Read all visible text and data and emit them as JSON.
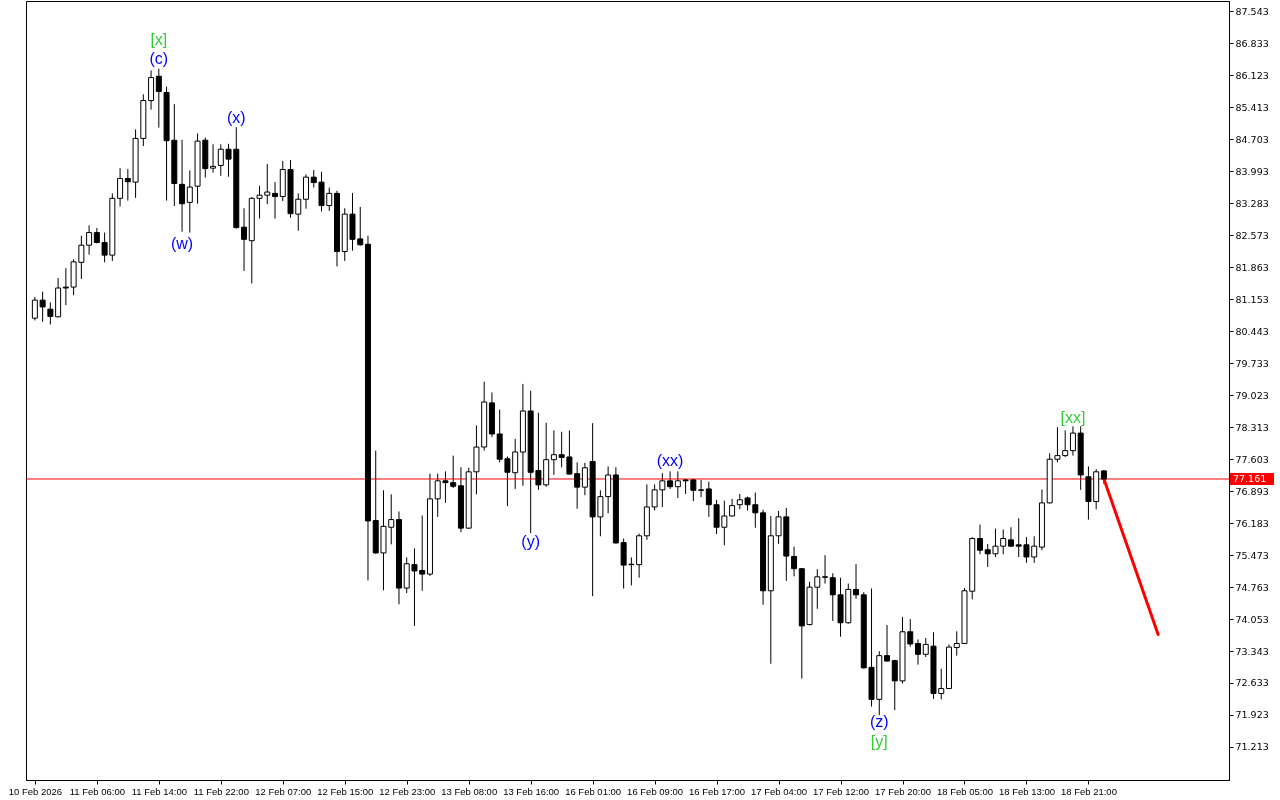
{
  "chart_data": {
    "type": "candlestick",
    "categories": [
      "10 Feb 2026",
      null,
      null,
      null,
      null,
      null,
      null,
      null,
      "11 Feb 06:00",
      null,
      null,
      null,
      null,
      null,
      null,
      null,
      "11 Feb 14:00",
      null,
      null,
      null,
      null,
      null,
      null,
      null,
      "11 Feb 22:00",
      null,
      null,
      null,
      null,
      null,
      null,
      null,
      "12 Feb 07:00",
      null,
      null,
      null,
      null,
      null,
      null,
      null,
      "12 Feb 15:00",
      null,
      null,
      null,
      null,
      null,
      null,
      null,
      "12 Feb 23:00",
      null,
      null,
      null,
      null,
      null,
      null,
      null,
      "13 Feb 08:00",
      null,
      null,
      null,
      null,
      null,
      null,
      null,
      "13 Feb 16:00",
      null,
      null,
      null,
      null,
      null,
      null,
      null,
      "16 Feb 01:00",
      null,
      null,
      null,
      null,
      null,
      null,
      null,
      "16 Feb 09:00",
      null,
      null,
      null,
      null,
      null,
      null,
      null,
      "16 Feb 17:00",
      null,
      null,
      null,
      null,
      null,
      null,
      null,
      "17 Feb 04:00",
      null,
      null,
      null,
      null,
      null,
      null,
      null,
      "17 Feb 12:00",
      null,
      null,
      null,
      null,
      null,
      null,
      null,
      "17 Feb 20:00",
      null,
      null,
      null,
      null,
      null,
      null,
      null,
      "18 Feb 05:00",
      null,
      null,
      null,
      null,
      null,
      null,
      null,
      "18 Feb 13:00",
      null,
      null,
      null,
      null,
      null,
      null,
      null,
      "18 Feb 21:00",
      null,
      null,
      null,
      null,
      null,
      null,
      null,
      null,
      null,
      null,
      null,
      null,
      null,
      null,
      null,
      null,
      null
    ],
    "ohlc": [
      [
        80.73,
        81.2,
        80.68,
        81.13
      ],
      [
        81.13,
        81.32,
        80.65,
        80.98
      ],
      [
        80.93,
        81.08,
        80.59,
        80.77
      ],
      [
        80.76,
        81.62,
        80.75,
        81.4
      ],
      [
        81.42,
        81.84,
        81.02,
        81.4
      ],
      [
        81.42,
        82.04,
        81.24,
        81.98
      ],
      [
        81.97,
        82.56,
        81.6,
        82.35
      ],
      [
        82.35,
        82.79,
        82.14,
        82.63
      ],
      [
        82.63,
        82.73,
        82.39,
        82.41
      ],
      [
        82.41,
        82.63,
        81.97,
        82.13
      ],
      [
        82.13,
        83.5,
        82.0,
        83.39
      ],
      [
        83.39,
        84.06,
        83.21,
        83.83
      ],
      [
        83.83,
        84.04,
        83.34,
        83.76
      ],
      [
        83.75,
        84.92,
        83.4,
        84.72
      ],
      [
        84.72,
        85.7,
        84.55,
        85.56
      ],
      [
        85.56,
        86.23,
        85.36,
        86.07
      ],
      [
        86.1,
        86.27,
        84.96,
        85.76
      ],
      [
        85.74,
        85.87,
        83.34,
        84.67
      ],
      [
        84.68,
        85.48,
        83.22,
        83.72
      ],
      [
        83.7,
        84.69,
        82.65,
        83.27
      ],
      [
        83.3,
        84.01,
        82.63,
        83.64
      ],
      [
        83.66,
        84.83,
        83.27,
        84.66
      ],
      [
        84.68,
        84.74,
        83.85,
        84.05
      ],
      [
        84.06,
        84.59,
        83.96,
        84.1
      ],
      [
        84.12,
        84.59,
        83.89,
        84.48
      ],
      [
        84.48,
        84.6,
        83.87,
        84.26
      ],
      [
        84.48,
        84.97,
        82.72,
        82.74
      ],
      [
        82.75,
        83.17,
        81.78,
        82.48
      ],
      [
        82.45,
        83.42,
        81.5,
        83.39
      ],
      [
        83.39,
        83.67,
        82.94,
        83.46
      ],
      [
        83.46,
        84.15,
        83.26,
        83.53
      ],
      [
        83.5,
        83.75,
        82.94,
        83.43
      ],
      [
        83.43,
        84.22,
        83.33,
        84.03
      ],
      [
        84.03,
        84.24,
        82.96,
        83.05
      ],
      [
        83.04,
        83.5,
        82.67,
        83.37
      ],
      [
        83.37,
        83.92,
        83.16,
        83.86
      ],
      [
        83.86,
        84.02,
        83.63,
        83.74
      ],
      [
        83.75,
        83.98,
        83.1,
        83.23
      ],
      [
        83.23,
        83.63,
        83.11,
        83.5
      ],
      [
        83.5,
        83.56,
        81.88,
        82.21
      ],
      [
        82.21,
        83.17,
        82.0,
        83.04
      ],
      [
        83.04,
        83.51,
        82.23,
        82.48
      ],
      [
        82.49,
        83.2,
        82.34,
        82.36
      ],
      [
        82.37,
        82.56,
        74.91,
        76.23
      ],
      [
        76.24,
        77.79,
        75.5,
        75.52
      ],
      [
        75.52,
        76.91,
        74.69,
        76.11
      ],
      [
        76.09,
        76.82,
        75.71,
        76.26
      ],
      [
        76.26,
        76.44,
        74.38,
        74.74
      ],
      [
        74.74,
        75.42,
        74.63,
        75.28
      ],
      [
        75.26,
        75.62,
        73.9,
        75.12
      ],
      [
        75.13,
        76.35,
        74.68,
        75.05
      ],
      [
        75.05,
        77.28,
        75.01,
        76.72
      ],
      [
        76.72,
        77.28,
        76.32,
        77.12
      ],
      [
        77.12,
        77.33,
        76.63,
        77.08
      ],
      [
        77.08,
        77.68,
        76.96,
        77.0
      ],
      [
        77.01,
        77.42,
        75.98,
        76.07
      ],
      [
        76.07,
        77.41,
        76.06,
        77.32
      ],
      [
        77.32,
        78.35,
        76.82,
        77.87
      ],
      [
        77.87,
        79.32,
        77.79,
        78.87
      ],
      [
        78.85,
        79.08,
        78.09,
        78.16
      ],
      [
        78.16,
        78.7,
        77.53,
        77.6
      ],
      [
        77.61,
        77.66,
        76.56,
        77.31
      ],
      [
        77.3,
        78.05,
        76.94,
        77.76
      ],
      [
        77.76,
        79.27,
        77.01,
        78.67
      ],
      [
        78.67,
        79.12,
        75.96,
        77.31
      ],
      [
        77.35,
        78.63,
        76.92,
        77.03
      ],
      [
        77.03,
        78.41,
        76.99,
        77.59
      ],
      [
        77.59,
        78.24,
        77.25,
        77.7
      ],
      [
        77.7,
        78.21,
        77.42,
        77.64
      ],
      [
        77.65,
        78.24,
        77.26,
        77.27
      ],
      [
        77.28,
        77.53,
        76.5,
        76.98
      ],
      [
        76.98,
        77.52,
        76.8,
        77.41
      ],
      [
        77.55,
        78.4,
        74.56,
        76.32
      ],
      [
        76.32,
        76.91,
        75.89,
        76.77
      ],
      [
        76.77,
        77.44,
        76.4,
        77.25
      ],
      [
        77.25,
        77.42,
        75.73,
        75.74
      ],
      [
        75.75,
        75.84,
        74.73,
        75.25
      ],
      [
        75.27,
        75.42,
        74.8,
        75.26
      ],
      [
        75.26,
        75.95,
        74.97,
        75.9
      ],
      [
        75.9,
        77.04,
        75.81,
        76.54
      ],
      [
        76.54,
        77.04,
        76.46,
        76.92
      ],
      [
        76.92,
        77.29,
        76.54,
        77.12
      ],
      [
        77.12,
        77.33,
        76.94,
        76.99
      ],
      [
        76.99,
        77.33,
        76.74,
        77.12
      ],
      [
        77.14,
        77.16,
        76.83,
        77.12
      ],
      [
        77.14,
        77.16,
        76.67,
        76.91
      ],
      [
        76.92,
        77.14,
        76.76,
        76.91
      ],
      [
        76.94,
        77.1,
        76.32,
        76.59
      ],
      [
        76.59,
        76.7,
        75.94,
        76.09
      ],
      [
        76.09,
        76.68,
        75.69,
        76.34
      ],
      [
        76.34,
        76.72,
        76.33,
        76.57
      ],
      [
        76.59,
        76.83,
        76.49,
        76.7
      ],
      [
        76.74,
        76.77,
        76.46,
        76.59
      ],
      [
        76.59,
        76.86,
        76.08,
        76.41
      ],
      [
        76.41,
        76.48,
        74.37,
        74.68
      ],
      [
        74.68,
        76.34,
        73.06,
        75.9
      ],
      [
        75.9,
        76.45,
        75.72,
        76.32
      ],
      [
        76.32,
        76.52,
        74.9,
        75.45
      ],
      [
        75.44,
        75.66,
        75.0,
        75.17
      ],
      [
        75.17,
        75.18,
        72.73,
        73.9
      ],
      [
        73.93,
        74.88,
        73.91,
        74.76
      ],
      [
        74.76,
        75.16,
        74.28,
        74.99
      ],
      [
        74.99,
        75.47,
        74.84,
        74.98
      ],
      [
        74.97,
        75.07,
        74.01,
        74.59
      ],
      [
        74.59,
        74.97,
        73.66,
        73.97
      ],
      [
        73.97,
        74.84,
        73.95,
        74.71
      ],
      [
        74.71,
        75.27,
        74.5,
        74.59
      ],
      [
        74.59,
        74.65,
        72.95,
        72.97
      ],
      [
        72.98,
        74.73,
        72.11,
        72.27
      ],
      [
        72.27,
        73.34,
        71.92,
        73.24
      ],
      [
        73.24,
        73.92,
        73.11,
        73.12
      ],
      [
        73.13,
        73.15,
        72.03,
        72.68
      ],
      [
        72.68,
        74.1,
        72.62,
        73.77
      ],
      [
        73.77,
        74.05,
        73.44,
        73.5
      ],
      [
        73.51,
        73.6,
        73.04,
        73.27
      ],
      [
        73.27,
        73.63,
        73.21,
        73.49
      ],
      [
        73.45,
        73.76,
        72.28,
        72.4
      ],
      [
        72.4,
        72.95,
        72.27,
        72.51
      ],
      [
        72.51,
        73.49,
        72.5,
        73.43
      ],
      [
        73.42,
        73.78,
        73.24,
        73.51
      ],
      [
        73.51,
        74.74,
        73.5,
        74.68
      ],
      [
        74.67,
        75.87,
        74.49,
        75.84
      ],
      [
        75.84,
        76.15,
        75.49,
        75.58
      ],
      [
        75.59,
        75.72,
        75.21,
        75.5
      ],
      [
        75.5,
        76.06,
        75.43,
        75.67
      ],
      [
        75.67,
        76.04,
        75.49,
        75.84
      ],
      [
        75.81,
        76.09,
        75.65,
        75.67
      ],
      [
        75.7,
        76.29,
        75.43,
        75.67
      ],
      [
        75.7,
        75.87,
        75.3,
        75.43
      ],
      [
        75.43,
        75.89,
        75.3,
        75.67
      ],
      [
        75.65,
        76.93,
        75.58,
        76.63
      ],
      [
        76.63,
        77.73,
        76.62,
        77.6
      ],
      [
        77.6,
        78.31,
        77.53,
        77.68
      ],
      [
        77.68,
        78.24,
        77.65,
        77.79
      ],
      [
        77.79,
        78.33,
        77.68,
        78.18
      ],
      [
        78.18,
        78.33,
        76.92,
        77.25
      ],
      [
        77.21,
        77.44,
        76.26,
        76.66
      ],
      [
        76.66,
        77.38,
        76.49,
        77.32
      ],
      [
        77.34,
        77.36,
        77.05,
        77.16
      ],
      null,
      null,
      null,
      null,
      null,
      null,
      null,
      null,
      null,
      null,
      null,
      null,
      null,
      null,
      null
    ],
    "ylim": [
      70.48,
      87.77
    ],
    "yticks": [
      87.543,
      86.833,
      86.123,
      85.413,
      84.703,
      83.993,
      83.283,
      82.573,
      81.863,
      81.153,
      80.443,
      79.733,
      79.023,
      78.313,
      77.603,
      76.893,
      76.183,
      75.473,
      74.763,
      74.053,
      73.343,
      72.633,
      71.923,
      71.213
    ],
    "ref_lines": [
      {
        "axis": "y",
        "value": 77.161,
        "label": "77.161",
        "color": "#ff0000"
      }
    ],
    "series": [
      {
        "type": "line",
        "color": "#ff0000",
        "values": [
          null,
          null,
          null,
          null,
          null,
          null,
          null,
          null,
          null,
          null,
          null,
          null,
          null,
          null,
          null,
          null,
          null,
          null,
          null,
          null,
          null,
          null,
          null,
          null,
          null,
          null,
          null,
          null,
          null,
          null,
          null,
          null,
          null,
          null,
          null,
          null,
          null,
          null,
          null,
          null,
          null,
          null,
          null,
          null,
          null,
          null,
          null,
          null,
          null,
          null,
          null,
          null,
          null,
          null,
          null,
          null,
          null,
          null,
          null,
          null,
          null,
          null,
          null,
          null,
          null,
          null,
          null,
          null,
          null,
          null,
          null,
          null,
          null,
          null,
          null,
          null,
          null,
          null,
          null,
          null,
          null,
          null,
          null,
          null,
          null,
          null,
          null,
          null,
          null,
          null,
          null,
          null,
          null,
          null,
          null,
          null,
          null,
          null,
          null,
          null,
          null,
          null,
          null,
          null,
          null,
          null,
          null,
          null,
          null,
          null,
          null,
          null,
          null,
          null,
          null,
          null,
          null,
          null,
          null,
          null,
          null,
          null,
          null,
          null,
          null,
          null,
          null,
          null,
          null,
          null,
          null,
          null,
          null,
          null,
          null,
          null,
          null,
          null,
          77.16,
          null,
          null,
          null,
          null,
          null,
          null,
          73.71,
          null,
          null,
          null,
          null,
          null,
          null,
          null,
          null
        ]
      }
    ],
    "annotations": [
      "[x]",
      "(c)",
      "(w)",
      "(x)",
      "(y)",
      "(xx)",
      "(z)",
      "[y]",
      "[xx]"
    ]
  }
}
